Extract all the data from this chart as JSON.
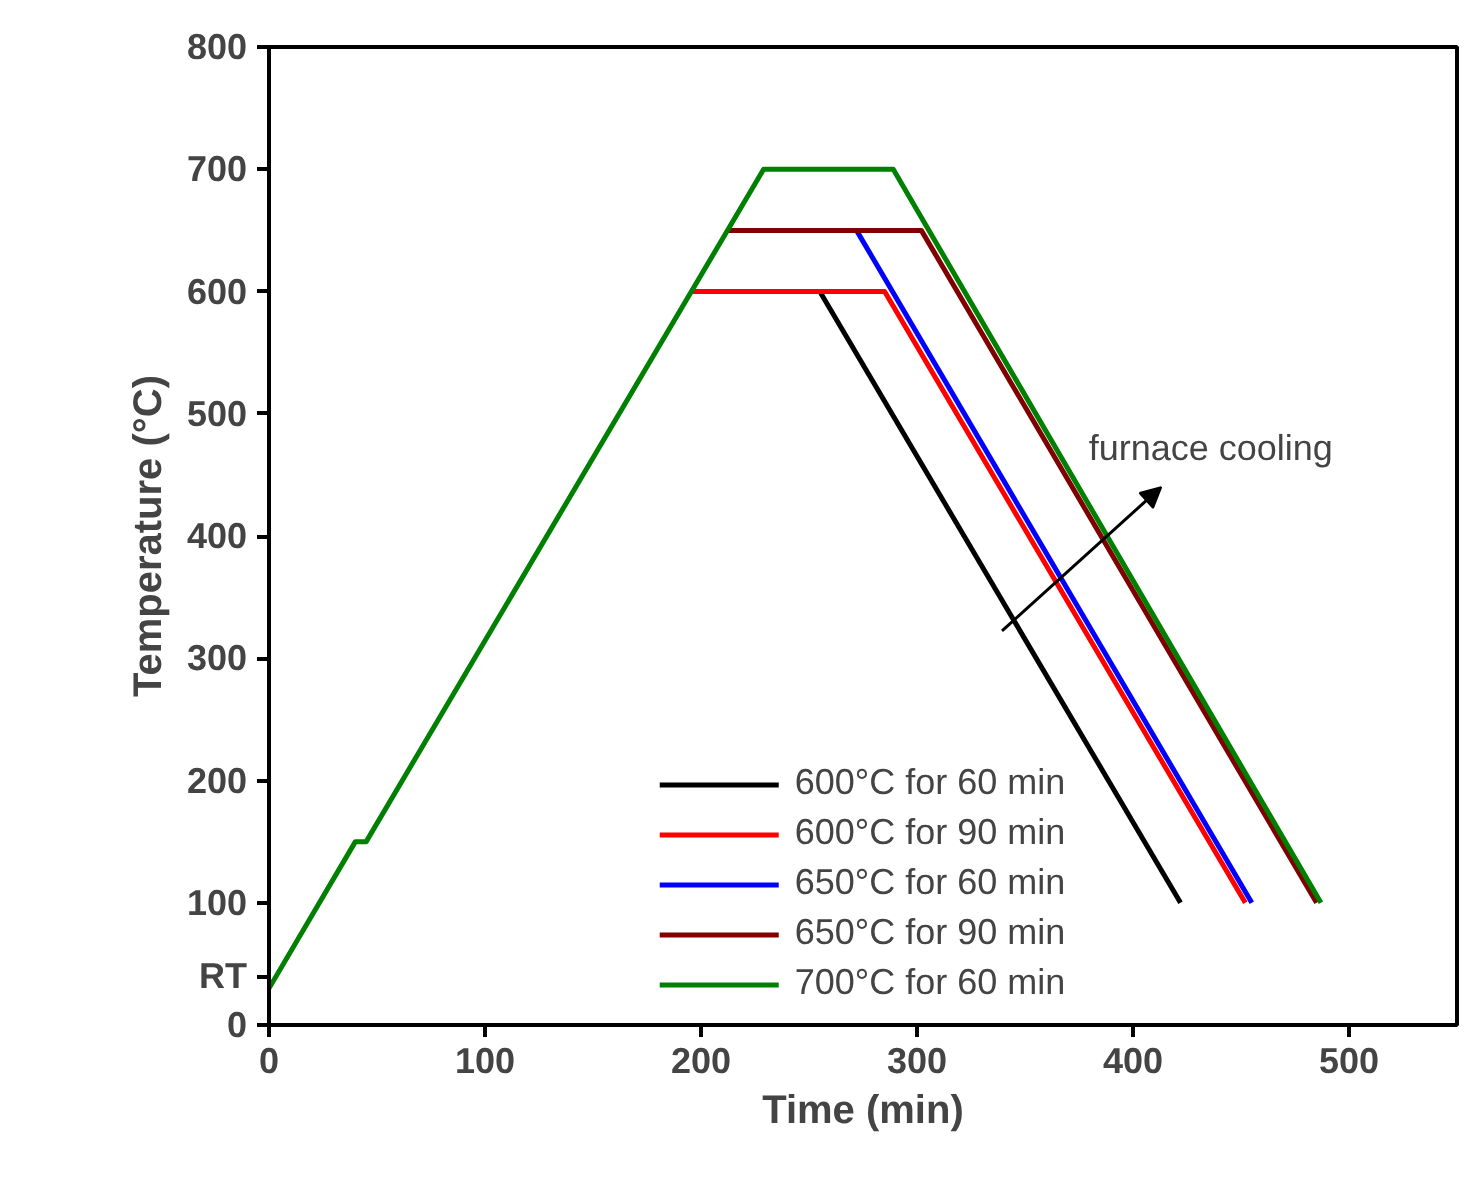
{
  "chart_data": {
    "type": "line",
    "xlabel": "Time (min)",
    "ylabel": "Temperature (°C)",
    "xlim": [
      0,
      550
    ],
    "ylim": [
      0,
      800
    ],
    "xticks": [
      0,
      100,
      200,
      300,
      400,
      500
    ],
    "yticks": [
      0,
      100,
      200,
      300,
      400,
      500,
      600,
      700,
      800
    ],
    "grid": false,
    "legend": "bottom",
    "marker": "none",
    "line_style": "solid",
    "series": [
      {
        "name": "600°C for 60 min",
        "color": "#000000",
        "x": [
          255,
          422
        ],
        "values": [
          600,
          100
        ]
      },
      {
        "name": "600°C for 90 min",
        "color": "#ff0000",
        "x": [
          195,
          285,
          452
        ],
        "values": [
          600,
          600,
          100
        ]
      },
      {
        "name": "650°C for 60 min",
        "color": "#0000ff",
        "x": [
          272,
          455
        ],
        "values": [
          650,
          100
        ]
      },
      {
        "name": "650°C for 90 min",
        "color": "#800000",
        "x": [
          212,
          302,
          485
        ],
        "values": [
          650,
          650,
          100
        ]
      },
      {
        "name": "700°C for 60 min",
        "color": "#008000",
        "x": [
          0,
          40,
          45,
          229,
          289,
          487
        ],
        "values": [
          30,
          150,
          150,
          700,
          700,
          100
        ]
      }
    ],
    "annotations": [
      "RT",
      "furnace cooling"
    ]
  }
}
